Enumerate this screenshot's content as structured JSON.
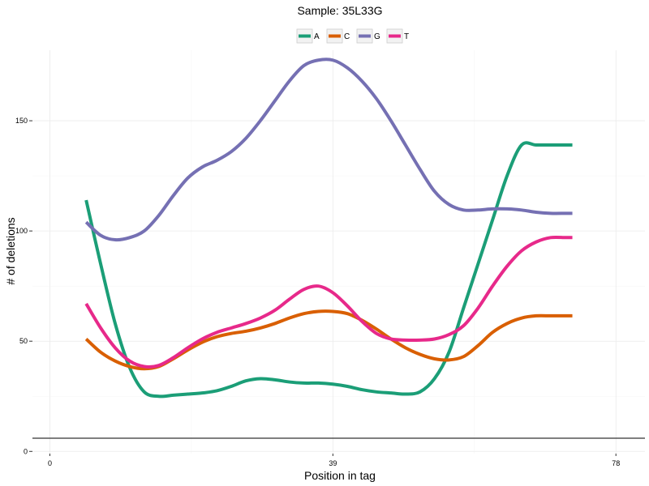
{
  "chart_data": {
    "type": "line",
    "title": "Sample: 35L33G",
    "xlabel": "Position in tag",
    "ylabel": "# of deletions",
    "xlim": [
      -2.4,
      82
    ],
    "ylim": [
      -1,
      182
    ],
    "x_ticks": [
      0,
      39,
      78
    ],
    "y_ticks": [
      0,
      50,
      100,
      150
    ],
    "x_tick_labels": [
      "0",
      "39",
      "78"
    ],
    "y_tick_labels": [
      "0",
      "50",
      "100",
      "150"
    ],
    "grid": true,
    "legend_position": "top",
    "series": [
      {
        "name": "A",
        "color": "#1b9e77",
        "x": [
          5,
          7,
          9,
          11,
          13,
          15,
          17,
          19,
          21,
          23,
          25,
          27,
          29,
          31,
          33,
          35,
          37,
          39,
          41,
          43,
          45,
          47,
          49,
          51,
          53,
          55,
          57,
          59,
          61,
          63,
          65,
          67,
          69,
          71,
          72
        ],
        "y": [
          114,
          85,
          58,
          38,
          27,
          25,
          25.5,
          26,
          26.5,
          27.5,
          29.5,
          32,
          33,
          32.5,
          31.5,
          31,
          31,
          30.5,
          29.5,
          28,
          27,
          26.5,
          26,
          27,
          33,
          45,
          65,
          85,
          105,
          125,
          139,
          139,
          139,
          139,
          139
        ]
      },
      {
        "name": "C",
        "color": "#d95f02",
        "x": [
          5,
          7,
          9,
          11,
          13,
          15,
          17,
          19,
          21,
          23,
          25,
          27,
          29,
          31,
          33,
          35,
          37,
          39,
          41,
          43,
          45,
          47,
          49,
          51,
          53,
          55,
          57,
          59,
          61,
          63,
          65,
          67,
          69,
          71,
          72
        ],
        "y": [
          51,
          45,
          41,
          38.5,
          37.5,
          38.5,
          42,
          46,
          49.5,
          52,
          53.5,
          54.5,
          56,
          58,
          60.5,
          62.5,
          63.5,
          63.5,
          62.5,
          59.5,
          55.5,
          51,
          47,
          44,
          42,
          41.5,
          43,
          48,
          54,
          58,
          60.5,
          61.5,
          61.5,
          61.5,
          61.5
        ]
      },
      {
        "name": "G",
        "color": "#7570b3",
        "x": [
          5,
          7,
          9,
          11,
          13,
          15,
          17,
          19,
          21,
          23,
          25,
          27,
          29,
          31,
          33,
          35,
          37,
          39,
          41,
          43,
          45,
          47,
          49,
          51,
          53,
          55,
          57,
          59,
          61,
          63,
          65,
          67,
          69,
          71,
          72
        ],
        "y": [
          104,
          98,
          96,
          97,
          100,
          107,
          116,
          124,
          129,
          132,
          136,
          142,
          150,
          159,
          168,
          175,
          177.5,
          177.5,
          174,
          168,
          160,
          150,
          139,
          128,
          118,
          112,
          109.5,
          109.5,
          110,
          110,
          109.5,
          108.5,
          108,
          108,
          108
        ]
      },
      {
        "name": "T",
        "color": "#e7298a",
        "x": [
          5,
          7,
          9,
          11,
          13,
          15,
          17,
          19,
          21,
          23,
          25,
          27,
          29,
          31,
          33,
          35,
          37,
          39,
          41,
          43,
          45,
          47,
          49,
          51,
          53,
          55,
          57,
          59,
          61,
          63,
          65,
          67,
          69,
          71,
          72
        ],
        "y": [
          67,
          56,
          47,
          41,
          38.5,
          39,
          42.5,
          47,
          51,
          54,
          56,
          58,
          60.5,
          64,
          69,
          73.5,
          75,
          72,
          66,
          59,
          53.5,
          51,
          50.5,
          50.5,
          51,
          53,
          57,
          65,
          75,
          84,
          91,
          95,
          97,
          97,
          97
        ]
      }
    ]
  }
}
